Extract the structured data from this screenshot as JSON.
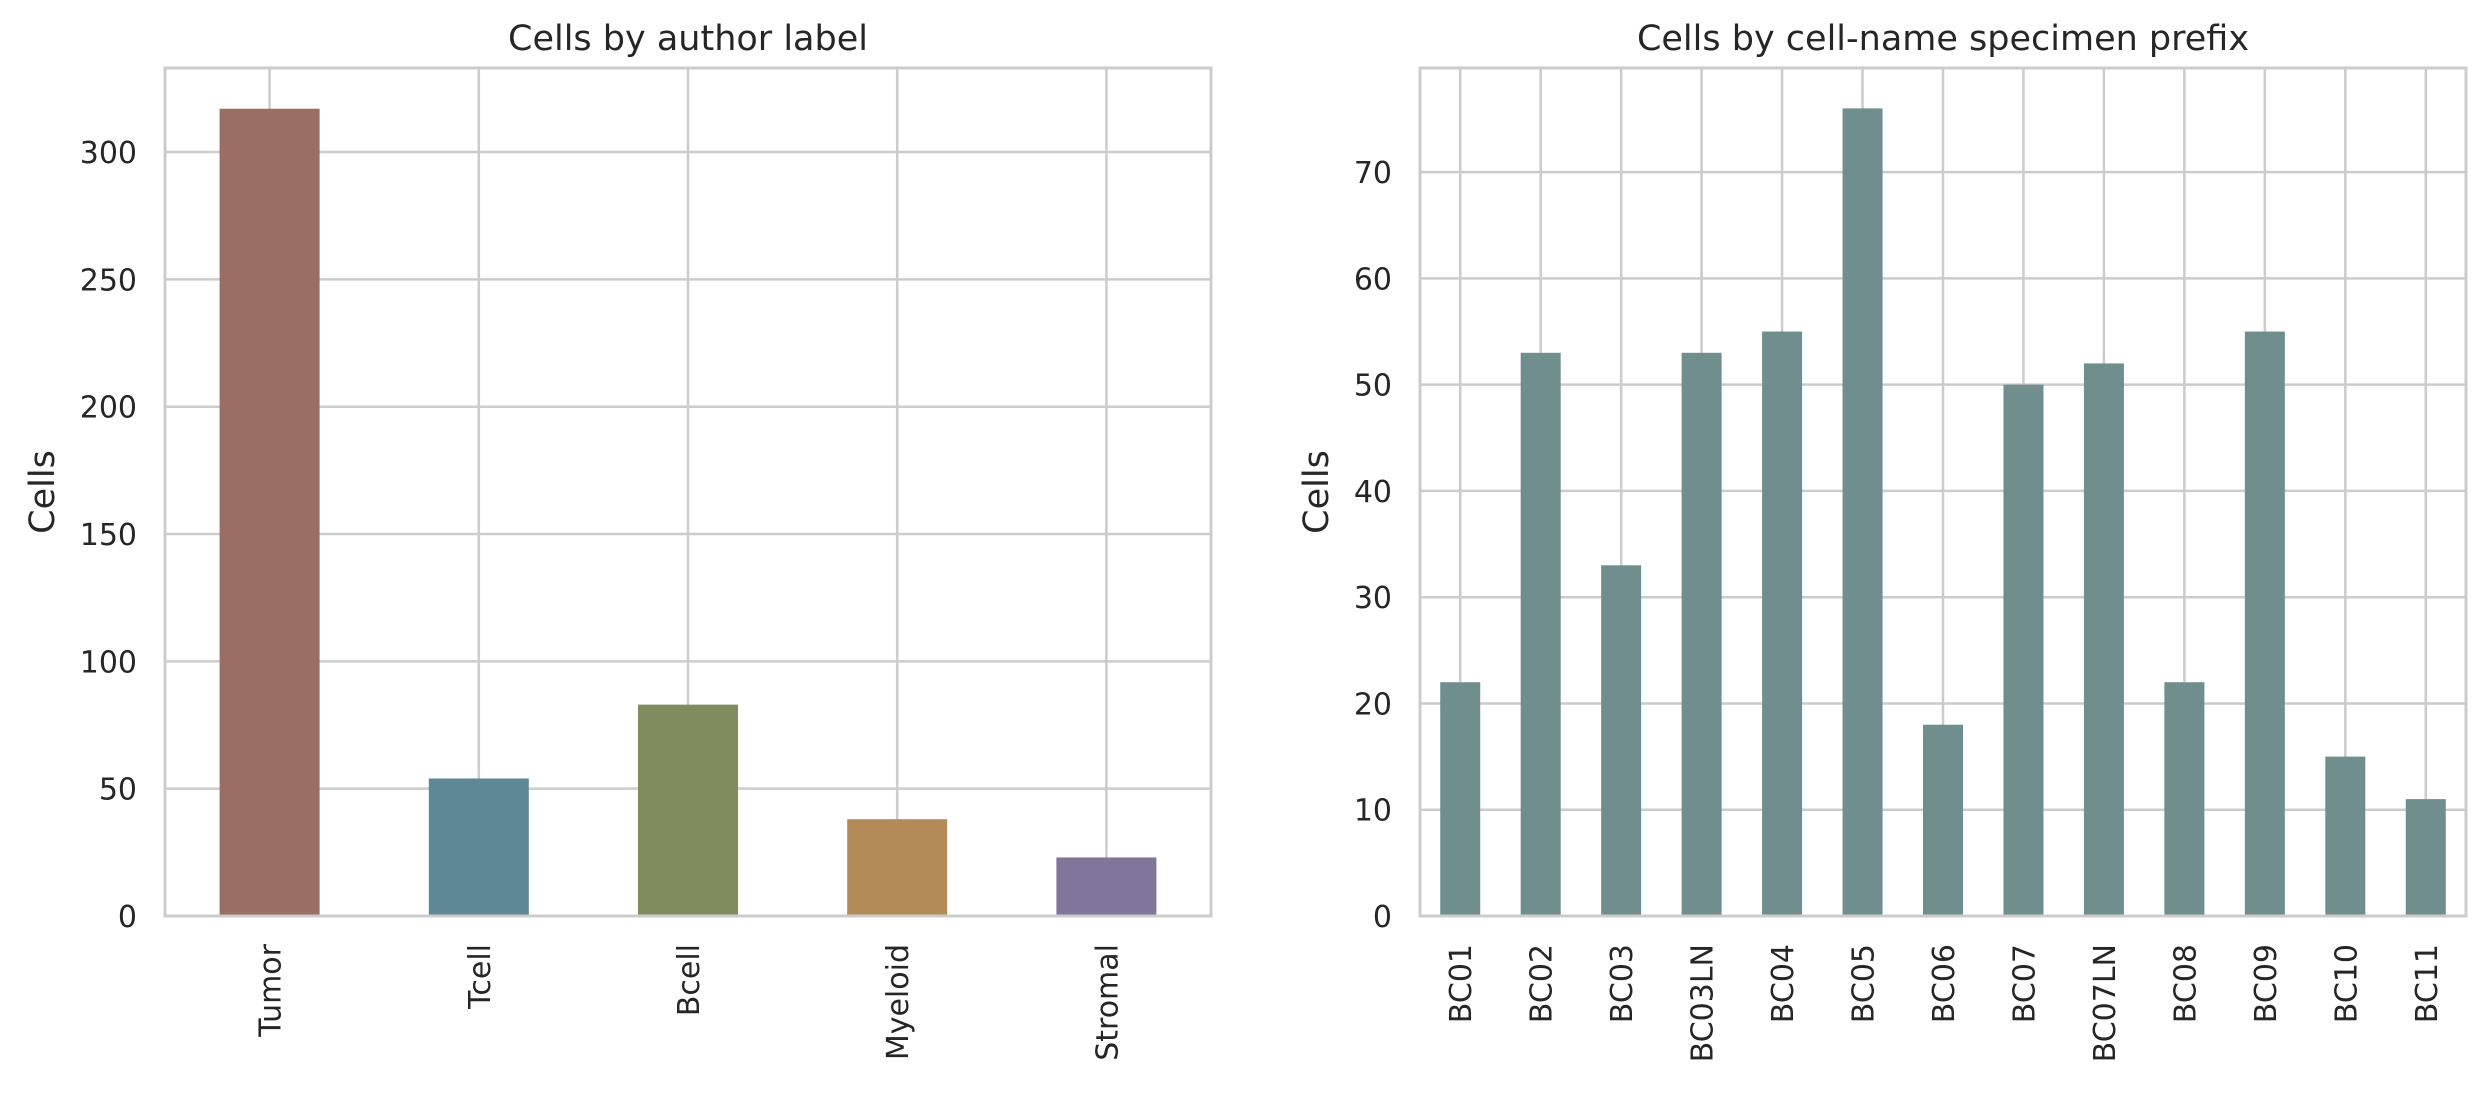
{
  "chart_data": [
    {
      "type": "bar",
      "title": "Cells by author label",
      "xlabel": "",
      "ylabel": "Cells",
      "categories": [
        "Tumor",
        "Tcell",
        "Bcell",
        "Myeloid",
        "Stromal"
      ],
      "values": [
        317,
        54,
        83,
        38,
        23
      ],
      "colors": [
        "#9a6e60",
        "#5e8896",
        "#7f8c5e",
        "#b38b57",
        "#81769a"
      ],
      "ylim": [
        0,
        333
      ],
      "yticks": [
        0,
        50,
        100,
        150,
        200,
        250,
        300
      ],
      "grid": true,
      "legend": "none"
    },
    {
      "type": "bar",
      "title": "Cells by cell-name specimen prefix",
      "xlabel": "",
      "ylabel": "Cells",
      "categories": [
        "BC01",
        "BC02",
        "BC03",
        "BC03LN",
        "BC04",
        "BC05",
        "BC06",
        "BC07",
        "BC07LN",
        "BC08",
        "BC09",
        "BC10",
        "BC11"
      ],
      "values": [
        22,
        53,
        33,
        53,
        55,
        76,
        18,
        50,
        52,
        22,
        55,
        15,
        11
      ],
      "colors": [
        "#708e8e"
      ],
      "ylim": [
        0,
        79.8
      ],
      "yticks": [
        0,
        10,
        20,
        30,
        40,
        50,
        60,
        70
      ],
      "grid": true,
      "legend": "none"
    }
  ]
}
